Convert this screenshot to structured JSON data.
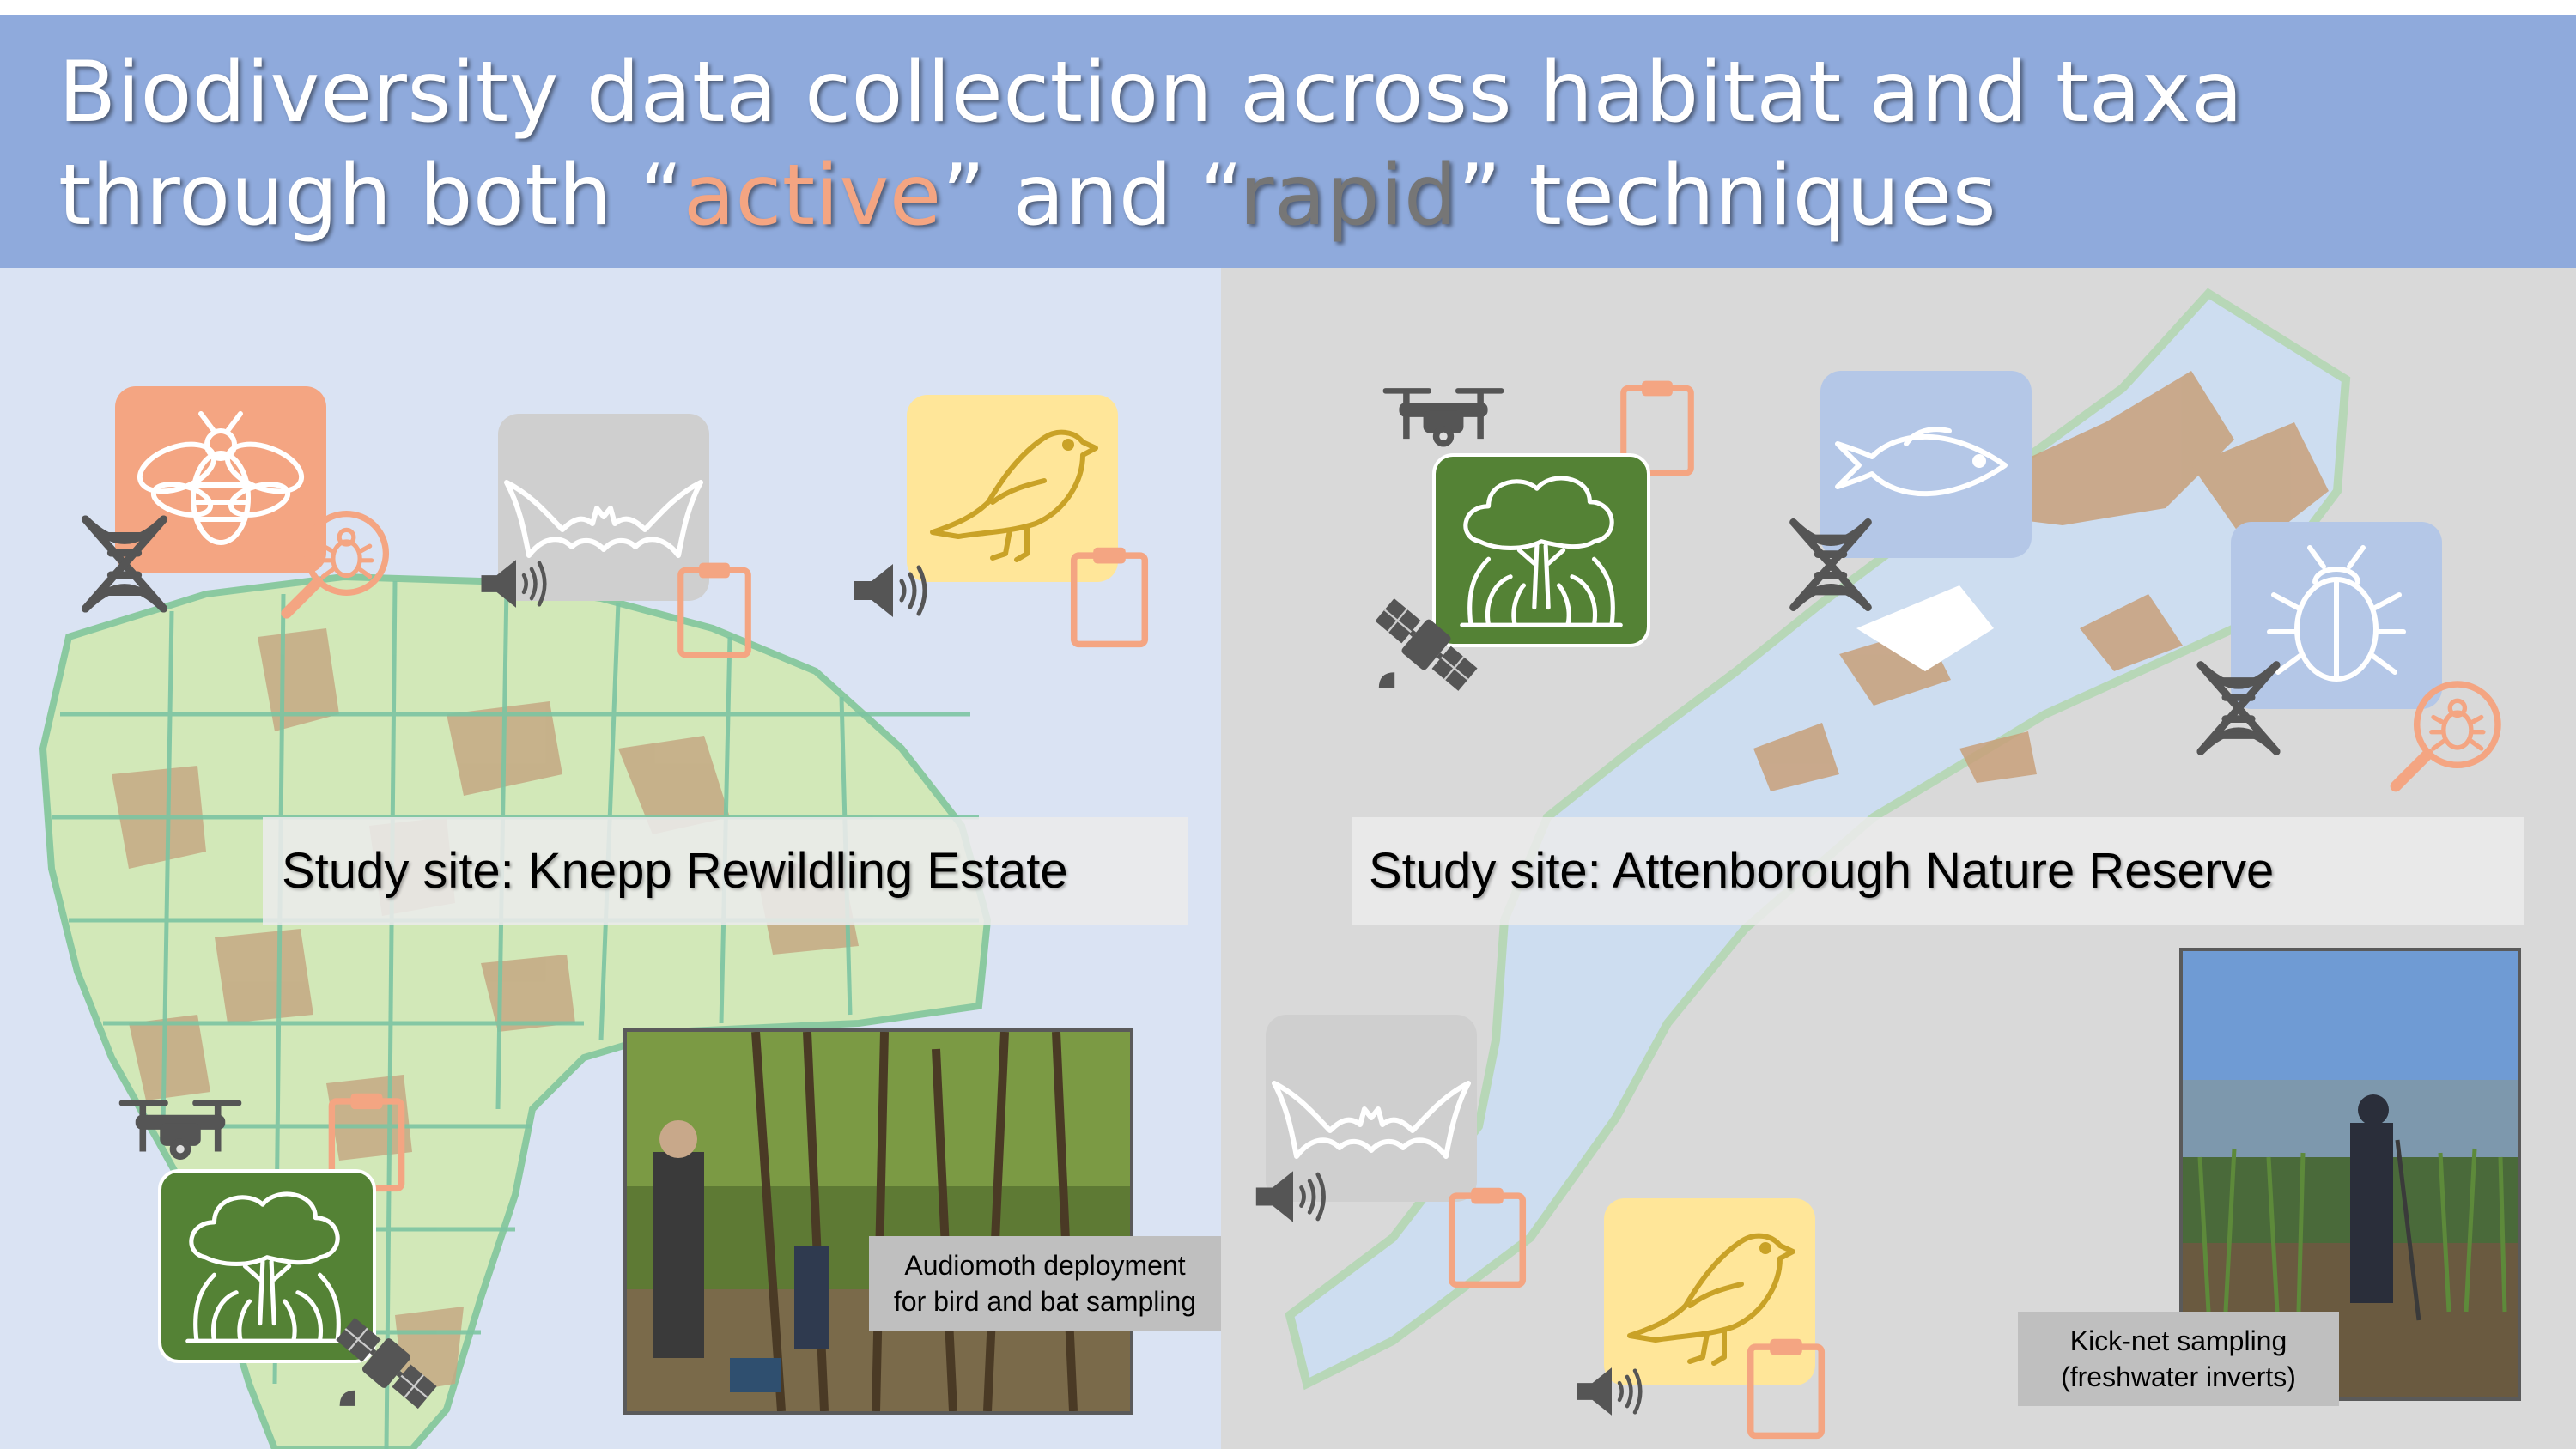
{
  "title": {
    "line1": "Biodiversity data collection across habitat and taxa",
    "line2_start": "through both “",
    "active": "active",
    "line2_mid": "” and “",
    "rapid": "rapid",
    "line2_end": "” techniques"
  },
  "left_site": {
    "label": "Study site: Knepp Rewildling Estate",
    "photo_caption_line1": "Audiomoth deployment",
    "photo_caption_line2": "for bird and bat sampling"
  },
  "right_site": {
    "label": "Study site: Attenborough Nature Reserve",
    "photo_caption_line1": "Kick-net sampling",
    "photo_caption_line2": "(freshwater inverts)"
  },
  "icons": {
    "taxa": [
      "bee-icon",
      "bat-icon",
      "bird-icon",
      "tree-icon",
      "fish-icon",
      "beetle-icon"
    ],
    "techniques": [
      "dna-icon",
      "speaker-icon",
      "clipboard-icon",
      "drone-icon",
      "satellite-icon",
      "magnifier-bug-icon"
    ]
  },
  "colors": {
    "banner": "#8faadc",
    "active": "#f4a582",
    "rapid": "#767676",
    "left_panel": "#dae3f3",
    "right_panel": "#d9d9d9",
    "tile_bee": "#f4a582",
    "tile_bat": "#cfcfcf",
    "tile_bird": "#ffe699",
    "tile_tree": "#548235",
    "tile_fish": "#b4c7e7"
  }
}
